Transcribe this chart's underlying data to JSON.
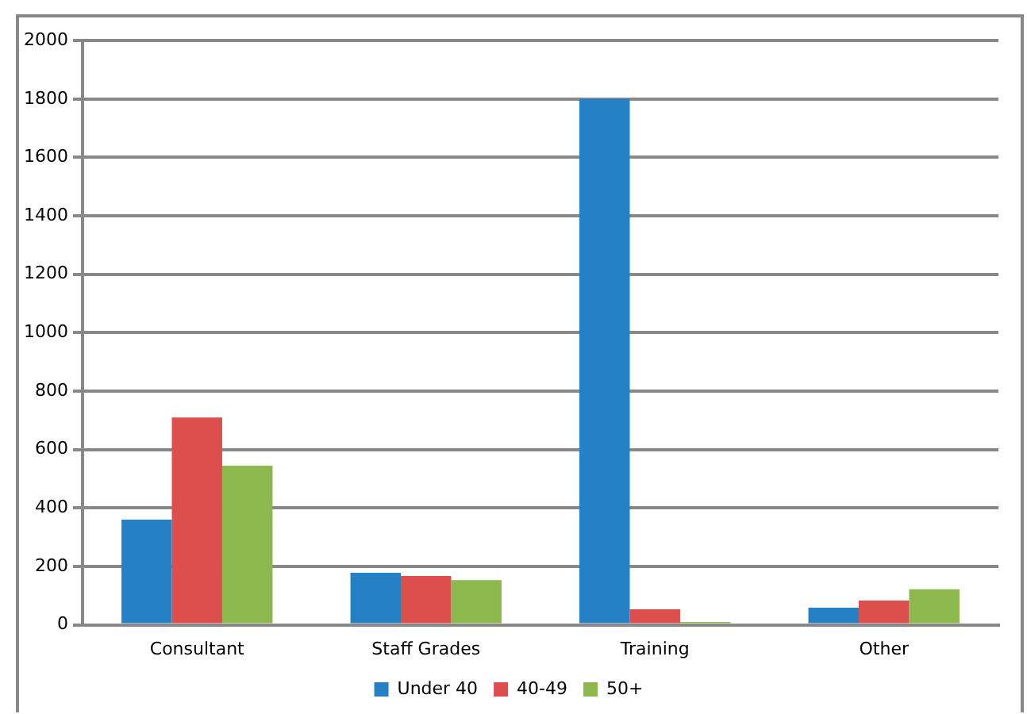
{
  "chart_data": {
    "type": "bar",
    "categories": [
      "Consultant",
      "Staff Grades",
      "Training",
      "Other"
    ],
    "series": [
      {
        "name": "Under 40",
        "color": "#2581c3",
        "values": [
          360,
          178,
          1800,
          59
        ]
      },
      {
        "name": "40-49",
        "color": "#dd4f4c",
        "values": [
          710,
          167,
          53,
          83
        ]
      },
      {
        "name": "50+",
        "color": "#8db84e",
        "values": [
          545,
          153,
          10,
          122
        ]
      }
    ],
    "ylim": [
      0,
      2000
    ],
    "yticks": [
      0,
      200,
      400,
      600,
      800,
      1000,
      1200,
      1400,
      1600,
      1800,
      2000
    ],
    "grid": "y",
    "legend": "bottom"
  }
}
